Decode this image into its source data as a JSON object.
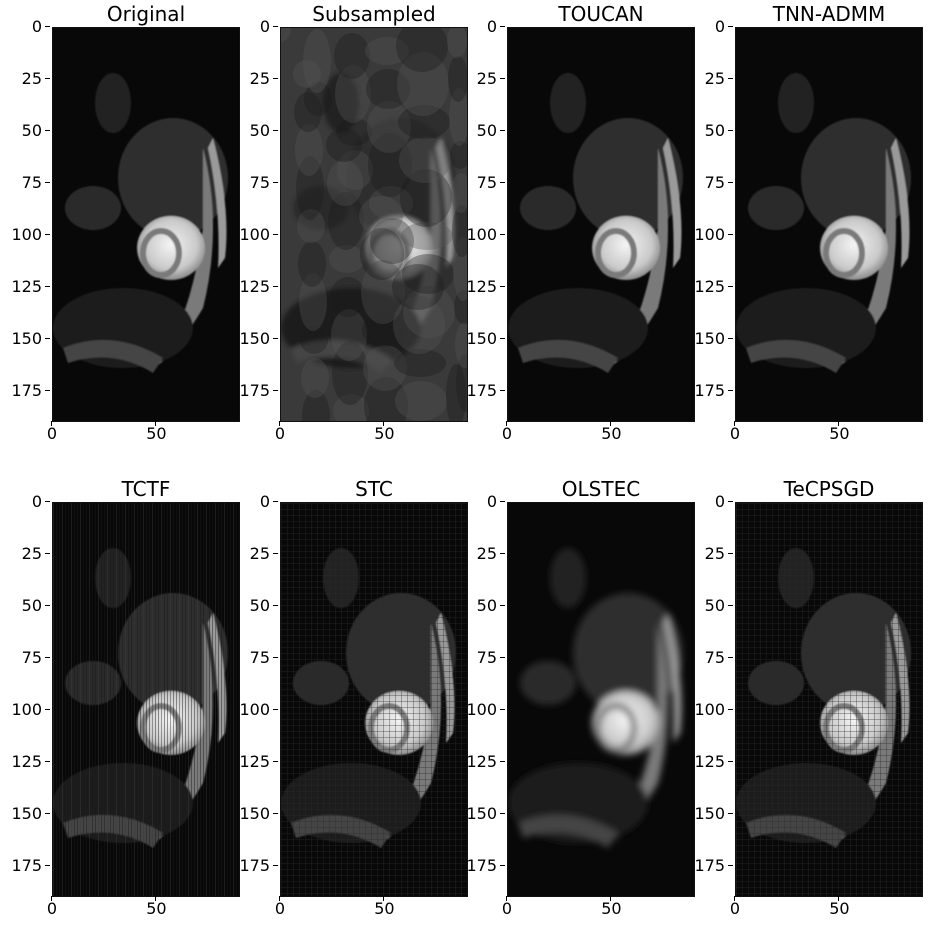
{
  "panels": [
    {
      "title": "Original",
      "style": "clean",
      "y_ticks": [
        "0",
        "25",
        "50",
        "75",
        "100",
        "125",
        "150",
        "175"
      ],
      "x_ticks": [
        "0",
        "50"
      ]
    },
    {
      "title": "Subsampled",
      "style": "noisy",
      "y_ticks": [
        "0",
        "25",
        "50",
        "75",
        "100",
        "125",
        "150",
        "175"
      ],
      "x_ticks": [
        "0",
        "50"
      ]
    },
    {
      "title": "TOUCAN",
      "style": "clean",
      "y_ticks": [
        "0",
        "25",
        "50",
        "75",
        "100",
        "125",
        "150",
        "175"
      ],
      "x_ticks": [
        "0",
        "50"
      ]
    },
    {
      "title": "TNN-ADMM",
      "style": "clean",
      "y_ticks": [
        "0",
        "25",
        "50",
        "75",
        "100",
        "125",
        "150",
        "175"
      ],
      "x_ticks": [
        "0",
        "50"
      ]
    },
    {
      "title": "TCTF",
      "style": "streaks",
      "y_ticks": [
        "0",
        "25",
        "50",
        "75",
        "100",
        "125",
        "150",
        "175"
      ],
      "x_ticks": [
        "0",
        "50"
      ]
    },
    {
      "title": "STC",
      "style": "grid",
      "y_ticks": [
        "0",
        "25",
        "50",
        "75",
        "100",
        "125",
        "150",
        "175"
      ],
      "x_ticks": [
        "0",
        "50"
      ]
    },
    {
      "title": "OLSTEC",
      "style": "blur",
      "y_ticks": [
        "0",
        "25",
        "50",
        "75",
        "100",
        "125",
        "150",
        "175"
      ],
      "x_ticks": [
        "0",
        "50"
      ]
    },
    {
      "title": "TeCPSGD",
      "style": "grid",
      "y_ticks": [
        "0",
        "25",
        "50",
        "75",
        "100",
        "125",
        "150",
        "175"
      ],
      "x_ticks": [
        "0",
        "50"
      ]
    }
  ],
  "colors": {
    "background": "#060606",
    "tissue": "#3a3a3a",
    "heart": "#d8d8d8"
  }
}
